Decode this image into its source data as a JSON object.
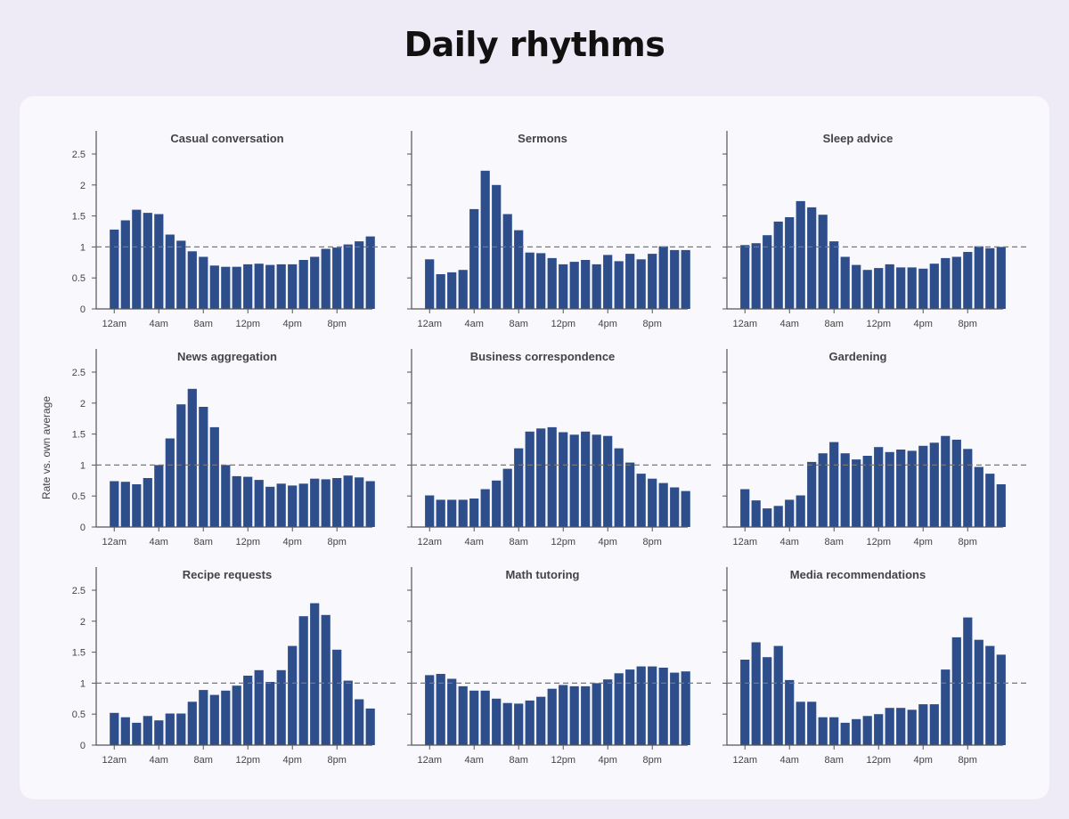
{
  "title": "Daily rhythms",
  "ylabel": "Rate vs. own average",
  "colors": {
    "bar": "#2d4e8b",
    "axis": "#555555",
    "ref": "#777777",
    "text": "#444444"
  },
  "chart_data": [
    {
      "type": "bar",
      "title": "Casual conversation",
      "ylim": [
        0,
        2.5
      ],
      "reference": 1.0,
      "categories": [
        "12am",
        "1am",
        "2am",
        "3am",
        "4am",
        "5am",
        "6am",
        "7am",
        "8am",
        "9am",
        "10am",
        "11am",
        "12pm",
        "1pm",
        "2pm",
        "3pm",
        "4pm",
        "5pm",
        "6pm",
        "7pm",
        "8pm",
        "9pm",
        "10pm",
        "11pm"
      ],
      "x_ticks": [
        "12am",
        "4am",
        "8am",
        "12pm",
        "4pm",
        "8pm"
      ],
      "y_ticks": [
        0,
        0.5,
        1.0,
        1.5,
        2.0,
        2.5
      ],
      "values": [
        1.28,
        1.43,
        1.6,
        1.55,
        1.53,
        1.2,
        1.1,
        0.93,
        0.84,
        0.7,
        0.68,
        0.68,
        0.72,
        0.73,
        0.71,
        0.72,
        0.72,
        0.79,
        0.84,
        0.97,
        0.99,
        1.04,
        1.09,
        1.17
      ]
    },
    {
      "type": "bar",
      "title": "Sermons",
      "ylim": [
        0,
        2.5
      ],
      "reference": 1.0,
      "categories": [
        "12am",
        "1am",
        "2am",
        "3am",
        "4am",
        "5am",
        "6am",
        "7am",
        "8am",
        "9am",
        "10am",
        "11am",
        "12pm",
        "1pm",
        "2pm",
        "3pm",
        "4pm",
        "5pm",
        "6pm",
        "7pm",
        "8pm",
        "9pm",
        "10pm",
        "11pm"
      ],
      "x_ticks": [
        "12am",
        "4am",
        "8am",
        "12pm",
        "4pm",
        "8pm"
      ],
      "y_ticks": [
        0,
        0.5,
        1.0,
        1.5,
        2.0,
        2.5
      ],
      "values": [
        0.8,
        0.56,
        0.59,
        0.63,
        1.61,
        2.23,
        2.0,
        1.53,
        1.27,
        0.91,
        0.9,
        0.82,
        0.72,
        0.76,
        0.79,
        0.72,
        0.87,
        0.77,
        0.89,
        0.8,
        0.89,
        1.01,
        0.95,
        0.95
      ]
    },
    {
      "type": "bar",
      "title": "Sleep advice",
      "ylim": [
        0,
        2.5
      ],
      "reference": 1.0,
      "categories": [
        "12am",
        "1am",
        "2am",
        "3am",
        "4am",
        "5am",
        "6am",
        "7am",
        "8am",
        "9am",
        "10am",
        "11am",
        "12pm",
        "1pm",
        "2pm",
        "3pm",
        "4pm",
        "5pm",
        "6pm",
        "7pm",
        "8pm",
        "9pm",
        "10pm",
        "11pm"
      ],
      "x_ticks": [
        "12am",
        "4am",
        "8am",
        "12pm",
        "4pm",
        "8pm"
      ],
      "y_ticks": [
        0,
        0.5,
        1.0,
        1.5,
        2.0,
        2.5
      ],
      "values": [
        1.03,
        1.06,
        1.19,
        1.41,
        1.48,
        1.74,
        1.64,
        1.52,
        1.09,
        0.84,
        0.71,
        0.63,
        0.66,
        0.72,
        0.67,
        0.67,
        0.65,
        0.73,
        0.82,
        0.84,
        0.92,
        1.01,
        0.98,
        1.0
      ]
    },
    {
      "type": "bar",
      "title": "News aggregation",
      "ylim": [
        0,
        2.5
      ],
      "reference": 1.0,
      "categories": [
        "12am",
        "1am",
        "2am",
        "3am",
        "4am",
        "5am",
        "6am",
        "7am",
        "8am",
        "9am",
        "10am",
        "11am",
        "12pm",
        "1pm",
        "2pm",
        "3pm",
        "4pm",
        "5pm",
        "6pm",
        "7pm",
        "8pm",
        "9pm",
        "10pm",
        "11pm"
      ],
      "x_ticks": [
        "12am",
        "4am",
        "8am",
        "12pm",
        "4pm",
        "8pm"
      ],
      "y_ticks": [
        0,
        0.5,
        1.0,
        1.5,
        2.0,
        2.5
      ],
      "values": [
        0.74,
        0.73,
        0.69,
        0.79,
        1.0,
        1.43,
        1.98,
        2.23,
        1.94,
        1.61,
        1.0,
        0.82,
        0.81,
        0.76,
        0.65,
        0.7,
        0.67,
        0.7,
        0.78,
        0.77,
        0.79,
        0.83,
        0.8,
        0.74
      ]
    },
    {
      "type": "bar",
      "title": "Business correspondence",
      "ylim": [
        0,
        2.5
      ],
      "reference": 1.0,
      "categories": [
        "12am",
        "1am",
        "2am",
        "3am",
        "4am",
        "5am",
        "6am",
        "7am",
        "8am",
        "9am",
        "10am",
        "11am",
        "12pm",
        "1pm",
        "2pm",
        "3pm",
        "4pm",
        "5pm",
        "6pm",
        "7pm",
        "8pm",
        "9pm",
        "10pm",
        "11pm"
      ],
      "x_ticks": [
        "12am",
        "4am",
        "8am",
        "12pm",
        "4pm",
        "8pm"
      ],
      "y_ticks": [
        0,
        0.5,
        1.0,
        1.5,
        2.0,
        2.5
      ],
      "values": [
        0.51,
        0.44,
        0.44,
        0.44,
        0.46,
        0.61,
        0.75,
        0.94,
        1.27,
        1.54,
        1.59,
        1.61,
        1.53,
        1.49,
        1.54,
        1.49,
        1.47,
        1.27,
        1.04,
        0.86,
        0.78,
        0.71,
        0.64,
        0.58
      ]
    },
    {
      "type": "bar",
      "title": "Gardening",
      "ylim": [
        0,
        2.5
      ],
      "reference": 1.0,
      "categories": [
        "12am",
        "1am",
        "2am",
        "3am",
        "4am",
        "5am",
        "6am",
        "7am",
        "8am",
        "9am",
        "10am",
        "11am",
        "12pm",
        "1pm",
        "2pm",
        "3pm",
        "4pm",
        "5pm",
        "6pm",
        "7pm",
        "8pm",
        "9pm",
        "10pm",
        "11pm"
      ],
      "x_ticks": [
        "12am",
        "4am",
        "8am",
        "12pm",
        "4pm",
        "8pm"
      ],
      "y_ticks": [
        0,
        0.5,
        1.0,
        1.5,
        2.0,
        2.5
      ],
      "values": [
        0.61,
        0.43,
        0.3,
        0.34,
        0.44,
        0.51,
        1.05,
        1.19,
        1.37,
        1.19,
        1.09,
        1.15,
        1.29,
        1.21,
        1.25,
        1.23,
        1.31,
        1.36,
        1.47,
        1.41,
        1.26,
        0.97,
        0.86,
        0.69
      ]
    },
    {
      "type": "bar",
      "title": "Recipe requests",
      "ylim": [
        0,
        2.5
      ],
      "reference": 1.0,
      "categories": [
        "12am",
        "1am",
        "2am",
        "3am",
        "4am",
        "5am",
        "6am",
        "7am",
        "8am",
        "9am",
        "10am",
        "11am",
        "12pm",
        "1pm",
        "2pm",
        "3pm",
        "4pm",
        "5pm",
        "6pm",
        "7pm",
        "8pm",
        "9pm",
        "10pm",
        "11pm"
      ],
      "x_ticks": [
        "12am",
        "4am",
        "8am",
        "12pm",
        "4pm",
        "8pm"
      ],
      "y_ticks": [
        0,
        0.5,
        1.0,
        1.5,
        2.0,
        2.5
      ],
      "values": [
        0.52,
        0.45,
        0.36,
        0.47,
        0.4,
        0.51,
        0.51,
        0.7,
        0.89,
        0.81,
        0.88,
        0.96,
        1.12,
        1.21,
        1.02,
        1.21,
        1.6,
        2.08,
        2.29,
        2.1,
        1.54,
        1.04,
        0.74,
        0.59
      ]
    },
    {
      "type": "bar",
      "title": "Math tutoring",
      "ylim": [
        0,
        2.5
      ],
      "reference": 1.0,
      "categories": [
        "12am",
        "1am",
        "2am",
        "3am",
        "4am",
        "5am",
        "6am",
        "7am",
        "8am",
        "9am",
        "10am",
        "11am",
        "12pm",
        "1pm",
        "2pm",
        "3pm",
        "4pm",
        "5pm",
        "6pm",
        "7pm",
        "8pm",
        "9pm",
        "10pm",
        "11pm"
      ],
      "x_ticks": [
        "12am",
        "4am",
        "8am",
        "12pm",
        "4pm",
        "8pm"
      ],
      "y_ticks": [
        0,
        0.5,
        1.0,
        1.5,
        2.0,
        2.5
      ],
      "values": [
        1.13,
        1.15,
        1.07,
        0.95,
        0.88,
        0.88,
        0.75,
        0.68,
        0.67,
        0.72,
        0.78,
        0.91,
        0.97,
        0.95,
        0.95,
        1.0,
        1.06,
        1.16,
        1.22,
        1.27,
        1.27,
        1.25,
        1.17,
        1.19
      ]
    },
    {
      "type": "bar",
      "title": "Media recommendations",
      "ylim": [
        0,
        2.5
      ],
      "reference": 1.0,
      "categories": [
        "12am",
        "1am",
        "2am",
        "3am",
        "4am",
        "5am",
        "6am",
        "7am",
        "8am",
        "9am",
        "10am",
        "11am",
        "12pm",
        "1pm",
        "2pm",
        "3pm",
        "4pm",
        "5pm",
        "6pm",
        "7pm",
        "8pm",
        "9pm",
        "10pm",
        "11pm"
      ],
      "x_ticks": [
        "12am",
        "4am",
        "8am",
        "12pm",
        "4pm",
        "8pm"
      ],
      "y_ticks": [
        0,
        0.5,
        1.0,
        1.5,
        2.0,
        2.5
      ],
      "values": [
        1.38,
        1.66,
        1.42,
        1.6,
        1.05,
        0.7,
        0.7,
        0.45,
        0.45,
        0.36,
        0.42,
        0.47,
        0.5,
        0.6,
        0.6,
        0.57,
        0.66,
        0.66,
        1.22,
        1.74,
        2.06,
        1.7,
        1.6,
        1.46
      ]
    }
  ]
}
